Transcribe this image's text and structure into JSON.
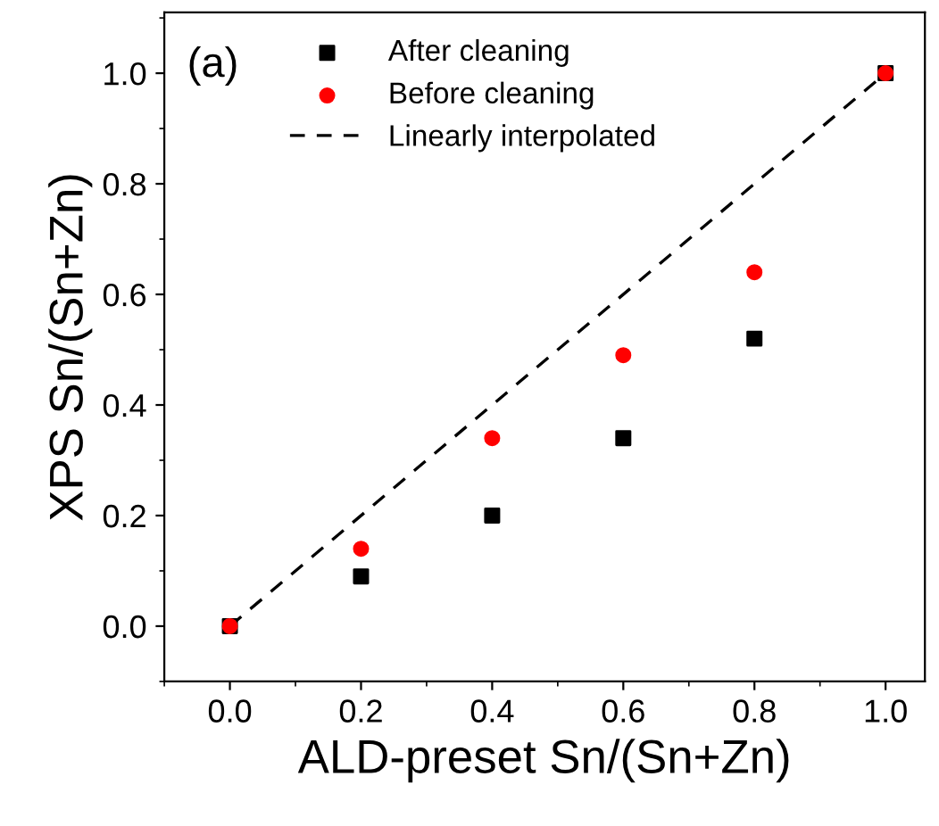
{
  "chart_data": {
    "type": "scatter",
    "xlabel": "ALD-preset Sn/(Sn+Zn)",
    "ylabel": "XPS Sn/(Sn+Zn)",
    "annotations": [
      "(a)"
    ],
    "x": [
      0,
      0.2,
      0.4,
      0.6,
      0.8,
      1.0
    ],
    "series": [
      {
        "name": "After cleaning",
        "color": "#000000",
        "marker": "square",
        "values": [
          0,
          0.09,
          0.2,
          0.34,
          0.52,
          1.0
        ]
      },
      {
        "name": "Before cleaning",
        "color": "#ff0000",
        "marker": "circle",
        "values": [
          0,
          0.14,
          0.34,
          0.49,
          0.64,
          1.0
        ]
      },
      {
        "name": "Linearly interpolated",
        "type": "line",
        "color": "#000000",
        "marker": "none",
        "line_style": "dashed",
        "x": [
          0,
          1.0
        ],
        "values": [
          0,
          1.0
        ]
      }
    ],
    "xlim": [
      -0.1,
      1.06
    ],
    "ylim": [
      -0.1,
      1.11
    ],
    "xticks": [
      {
        "value": 0,
        "label": "0.0"
      },
      0.2,
      0.4,
      0.6,
      0.8,
      {
        "value": 1,
        "label": "1.0"
      }
    ],
    "yticks": [
      {
        "value": 0,
        "label": "0.0"
      },
      0.2,
      0.4,
      0.6,
      0.8,
      {
        "value": 1,
        "label": "1.0"
      }
    ],
    "grid": false,
    "legend": "top left"
  }
}
